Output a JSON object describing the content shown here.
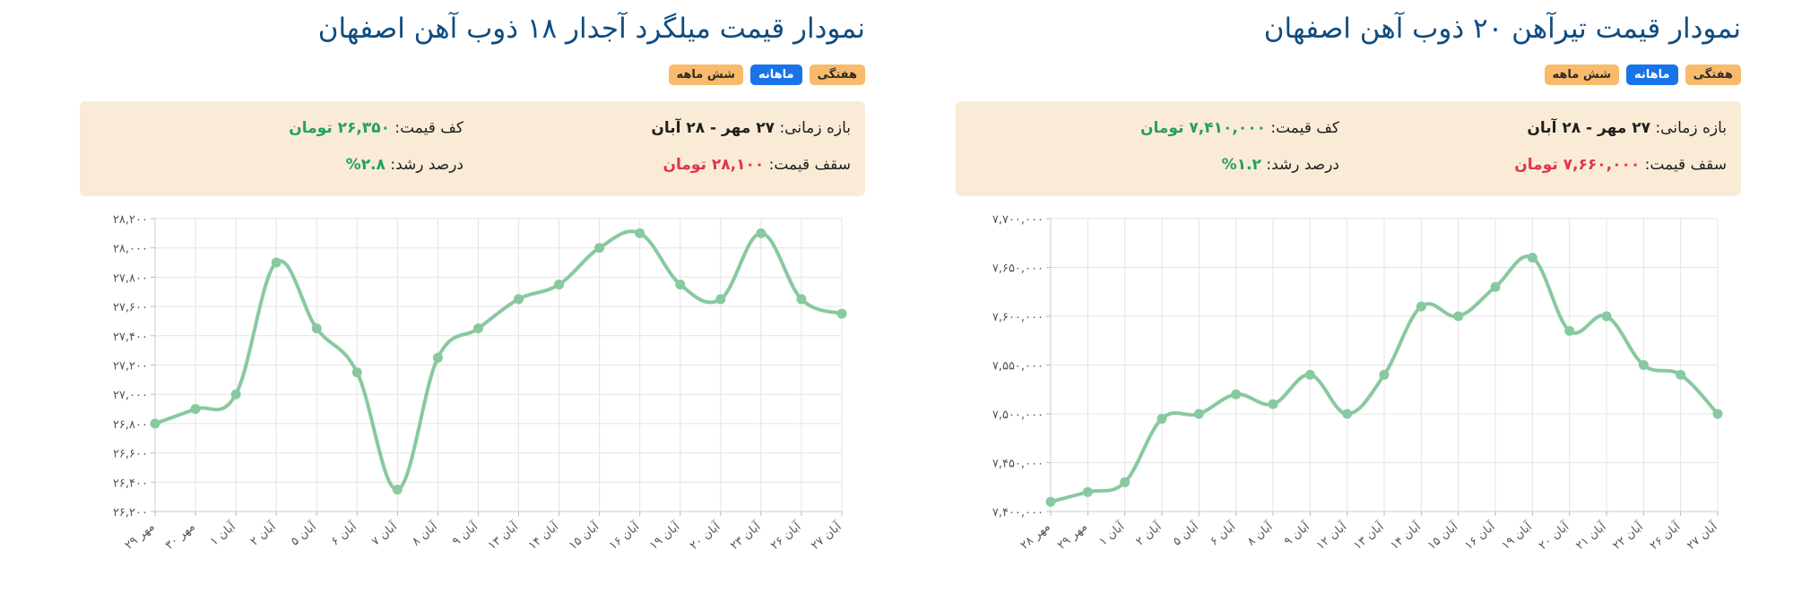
{
  "right_panel": {
    "title": "نمودار قیمت تیرآهن ۲۰ ذوب آهن اصفهان",
    "tabs": [
      "هفتگی",
      "ماهانه",
      "شش ماهه"
    ],
    "info": {
      "period_label": "بازه زمانی:",
      "period_value": "۲۷ مهر - ۲۸ آبان",
      "min_label": "کف قیمت:",
      "min_value": "۷,۴۱۰,۰۰۰ تومان",
      "max_label": "سقف قیمت:",
      "max_value": "۷,۶۶۰,۰۰۰ تومان",
      "growth_label": "درصد رشد:",
      "growth_value": "۱.۲%"
    }
  },
  "left_panel": {
    "title": "نمودار قیمت میلگرد آجدار ۱۸ ذوب آهن اصفهان",
    "tabs": [
      "هفتگی",
      "ماهانه",
      "شش ماهه"
    ],
    "info": {
      "period_label": "بازه زمانی:",
      "period_value": "۲۷ مهر - ۲۸ آبان",
      "min_label": "کف قیمت:",
      "min_value": "۲۶,۳۵۰ تومان",
      "max_label": "سقف قیمت:",
      "max_value": "۲۸,۱۰۰ تومان",
      "growth_label": "درصد رشد:",
      "growth_value": "۲.۸%"
    }
  },
  "colors": {
    "line": "#8accA0",
    "title": "#0f4c81",
    "tab_orange": "#f8bb6b",
    "tab_blue": "#1a73e8",
    "info_bg": "#faebd7",
    "green": "#24a065",
    "red": "#e0354a",
    "grid": "#e4e4e4"
  },
  "chart_data": [
    {
      "type": "line",
      "categories": [
        "۲۹ مهر",
        "۳۰ مهر",
        "۱ آبان",
        "۲ آبان",
        "۵ آبان",
        "۶ آبان",
        "۷ آبان",
        "۸ آبان",
        "۹ آبان",
        "۱۳ آبان",
        "۱۴ آبان",
        "۱۵ آبان",
        "۱۶ آبان",
        "۱۹ آبان",
        "۲۰ آبان",
        "۲۳ آبان",
        "۲۶ آبان",
        "۲۷ آبان"
      ],
      "values": [
        26800,
        26900,
        27000,
        27900,
        27450,
        27150,
        26350,
        27250,
        27450,
        27650,
        27750,
        28000,
        28100,
        27750,
        27650,
        28100,
        27650,
        27550
      ],
      "yticks": [
        28200,
        28000,
        27800,
        27600,
        27400,
        27200,
        27000,
        26800,
        26600,
        26400,
        26200
      ],
      "ytick_labels": [
        "۲۸,۲۰۰",
        "۲۸,۰۰۰",
        "۲۷,۸۰۰",
        "۲۷,۶۰۰",
        "۲۷,۴۰۰",
        "۲۷,۲۰۰",
        "۲۷,۰۰۰",
        "۲۶,۸۰۰",
        "۲۶,۶۰۰",
        "۲۶,۴۰۰",
        "۲۶,۲۰۰"
      ],
      "ylim": [
        26200,
        28200
      ],
      "grid": true,
      "legend": "none"
    },
    {
      "type": "line",
      "categories": [
        "۲۸ مهر",
        "۲۹ مهر",
        "۱ آبان",
        "۲ آبان",
        "۵ آبان",
        "۶ آبان",
        "۸ آبان",
        "۹ آبان",
        "۱۲ آبان",
        "۱۳ آبان",
        "۱۴ آبان",
        "۱۵ آبان",
        "۱۶ آبان",
        "۱۹ آبان",
        "۲۰ آبان",
        "۲۱ آبان",
        "۲۲ آبان",
        "۲۶ آبان",
        "۲۷ آبان"
      ],
      "values": [
        7410000,
        7420000,
        7430000,
        7495000,
        7500000,
        7520000,
        7510000,
        7540000,
        7500000,
        7540000,
        7610000,
        7600000,
        7630000,
        7660000,
        7585000,
        7600000,
        7550000,
        7540000,
        7500000
      ],
      "yticks": [
        7700000,
        7650000,
        7600000,
        7550000,
        7500000,
        7450000,
        7400000
      ],
      "ytick_labels": [
        "۷,۷۰۰,۰۰۰",
        "۷,۶۵۰,۰۰۰",
        "۷,۶۰۰,۰۰۰",
        "۷,۵۵۰,۰۰۰",
        "۷,۵۰۰,۰۰۰",
        "۷,۴۵۰,۰۰۰",
        "۷,۴۰۰,۰۰۰"
      ],
      "ylim": [
        7400000,
        7700000
      ],
      "grid": true,
      "legend": "none"
    }
  ]
}
